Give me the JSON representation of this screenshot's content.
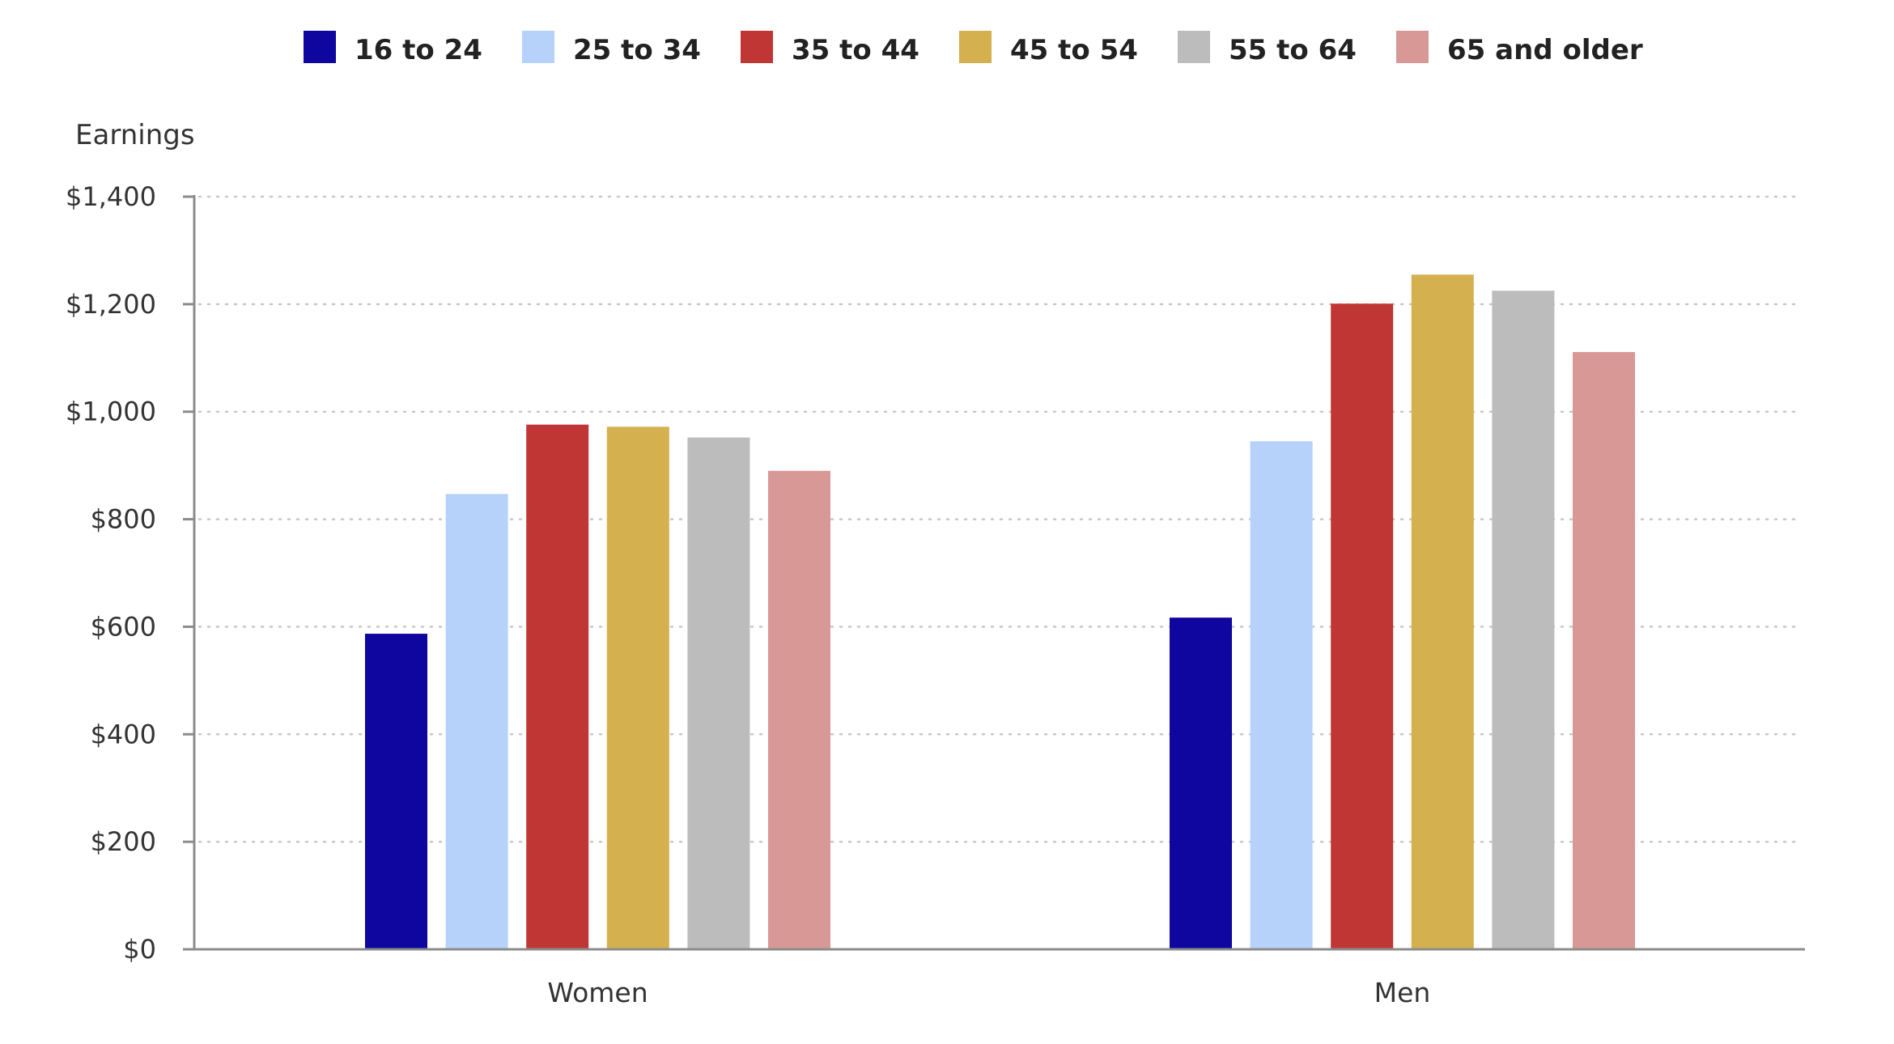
{
  "chart_data": {
    "type": "bar",
    "ylabel": "Earnings",
    "xlabel": "",
    "categories": [
      "Women",
      "Men"
    ],
    "series": [
      {
        "name": "16 to 24",
        "color": "#0e069e",
        "values": [
          587,
          617
        ]
      },
      {
        "name": "25 to 34",
        "color": "#b6d2fb",
        "values": [
          847,
          945
        ]
      },
      {
        "name": "35 to 44",
        "color": "#c03634",
        "values": [
          976,
          1201
        ]
      },
      {
        "name": "45 to 54",
        "color": "#d5b04e",
        "values": [
          972,
          1255
        ]
      },
      {
        "name": "55 to 64",
        "color": "#bcbcbc",
        "values": [
          952,
          1225
        ]
      },
      {
        "name": "65 and older",
        "color": "#d79896",
        "values": [
          890,
          1111
        ]
      }
    ],
    "ylim": [
      0,
      1400
    ],
    "yticks": [
      {
        "value": 0,
        "label": "$0"
      },
      {
        "value": 200,
        "label": "$200"
      },
      {
        "value": 400,
        "label": "$400"
      },
      {
        "value": 600,
        "label": "$600"
      },
      {
        "value": 800,
        "label": "$800"
      },
      {
        "value": 1000,
        "label": "$1,000"
      },
      {
        "value": 1200,
        "label": "$1,200"
      },
      {
        "value": 1400,
        "label": "$1,400"
      }
    ],
    "grid": true,
    "legend_position": "top"
  }
}
